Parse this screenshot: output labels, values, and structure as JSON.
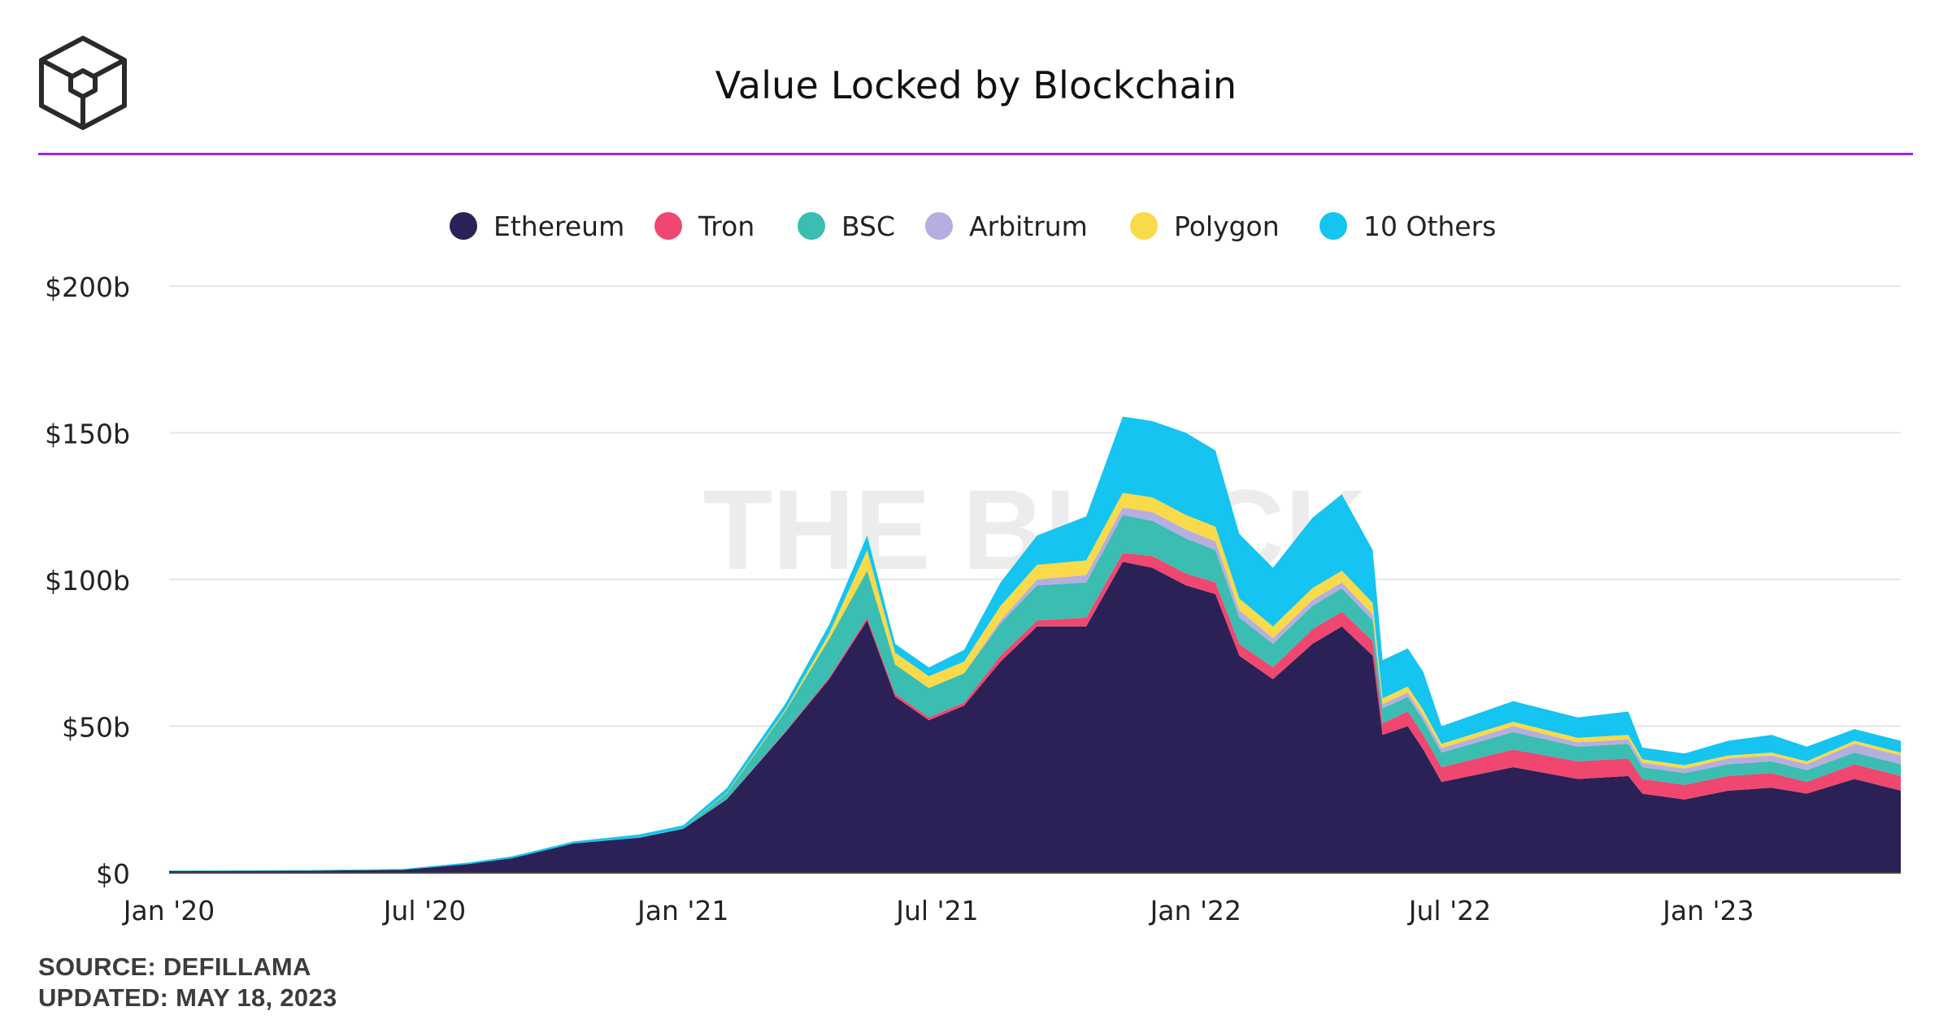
{
  "header": {
    "title": "Value Locked by Blockchain",
    "accent_color": "#a020f0"
  },
  "watermark": "THE BLOCK",
  "footer": {
    "source": "SOURCE: DEFILLAMA",
    "updated": "UPDATED: MAY 18, 2023"
  },
  "chart_data": {
    "type": "area",
    "stacked": true,
    "title": "Value Locked by Blockchain",
    "xlabel": "",
    "ylabel": "",
    "x_range": [
      "2020-01-01",
      "2023-05-18"
    ],
    "ylim": [
      0,
      200
    ],
    "y_unit": "billion USD",
    "y_ticks": [
      0,
      50,
      100,
      150,
      200
    ],
    "y_tick_labels": [
      "$0",
      "$50b",
      "$100b",
      "$150b",
      "$200b"
    ],
    "x_ticks": [
      "2020-01-01",
      "2020-07-01",
      "2021-01-01",
      "2021-07-01",
      "2022-01-01",
      "2022-07-01",
      "2023-01-01"
    ],
    "x_tick_labels": [
      "Jan '20",
      "Jul '20",
      "Jan '21",
      "Jul '21",
      "Jan '22",
      "Jul '22",
      "Jan '23"
    ],
    "grid": true,
    "legend_position": "top",
    "dates": [
      "2020-01-01",
      "2020-04-01",
      "2020-06-15",
      "2020-08-01",
      "2020-09-01",
      "2020-10-15",
      "2020-12-01",
      "2021-01-01",
      "2021-02-01",
      "2021-03-15",
      "2021-04-15",
      "2021-05-12",
      "2021-06-01",
      "2021-06-25",
      "2021-07-20",
      "2021-08-15",
      "2021-09-10",
      "2021-10-15",
      "2021-11-10",
      "2021-12-01",
      "2021-12-25",
      "2022-01-15",
      "2022-02-01",
      "2022-02-25",
      "2022-03-25",
      "2022-04-15",
      "2022-05-07",
      "2022-05-14",
      "2022-06-01",
      "2022-06-12",
      "2022-06-25",
      "2022-08-15",
      "2022-09-30",
      "2022-11-05",
      "2022-11-15",
      "2022-12-15",
      "2023-01-15",
      "2023-02-15",
      "2023-03-12",
      "2023-04-15",
      "2023-05-18"
    ],
    "series": [
      {
        "name": "Ethereum",
        "color": "#2b2157",
        "values": [
          0.6,
          0.7,
          1.0,
          3,
          5,
          10,
          12,
          15,
          25,
          48,
          66,
          86,
          60,
          52,
          57,
          72,
          84,
          84,
          106,
          104,
          98,
          95,
          74,
          66,
          78,
          84,
          74,
          47,
          50,
          42,
          31,
          36,
          32,
          33,
          27,
          25,
          28,
          29,
          27,
          32,
          28
        ]
      },
      {
        "name": "Tron",
        "color": "#ef476f",
        "values": [
          0,
          0,
          0,
          0,
          0,
          0,
          0,
          0,
          0.1,
          0.3,
          0.6,
          1,
          1,
          1,
          1,
          2,
          2,
          3,
          3,
          4,
          4,
          4,
          4,
          4,
          5,
          5,
          5,
          4,
          5,
          5,
          5,
          6,
          6,
          6,
          5,
          5,
          5,
          5,
          4,
          5,
          5
        ]
      },
      {
        "name": "BSC",
        "color": "#3bbdb1",
        "values": [
          0,
          0,
          0,
          0,
          0,
          0,
          0.1,
          0.2,
          2,
          7,
          13,
          16,
          10,
          10,
          10,
          11,
          12,
          12,
          13,
          12,
          12,
          11,
          9,
          8,
          8,
          8,
          7,
          5,
          5,
          5,
          5,
          6,
          5,
          5,
          4,
          4,
          4,
          4,
          4,
          4,
          4
        ]
      },
      {
        "name": "Arbitrum",
        "color": "#b6aee0",
        "values": [
          0,
          0,
          0,
          0,
          0,
          0,
          0,
          0,
          0,
          0,
          0,
          0,
          0,
          0,
          0,
          1,
          2,
          2.5,
          2.5,
          3,
          3,
          3,
          2.5,
          2,
          2,
          2,
          2,
          1.5,
          1.5,
          1.5,
          1.5,
          2,
          1.5,
          1.5,
          1.5,
          1.5,
          2,
          2,
          2,
          3,
          3
        ]
      },
      {
        "name": "Polygon",
        "color": "#f8da4a",
        "values": [
          0,
          0,
          0,
          0,
          0,
          0,
          0,
          0,
          0.2,
          0.5,
          2,
          7,
          4,
          4,
          4,
          5,
          5,
          5,
          5,
          5,
          5,
          5,
          4,
          4,
          4,
          4,
          4,
          2,
          2,
          2,
          1.5,
          1.5,
          1.5,
          1.5,
          1.2,
          1.2,
          1,
          1,
          1,
          1,
          1
        ]
      },
      {
        "name": "10 Others",
        "color": "#15c4f0",
        "values": [
          0.2,
          0.2,
          0.3,
          0.5,
          0.6,
          0.7,
          1,
          1,
          1.5,
          2,
          3,
          5,
          3,
          3,
          4,
          8,
          10,
          15,
          26,
          26,
          28,
          26,
          22,
          20,
          24,
          26,
          18,
          13,
          13,
          13,
          6,
          7,
          7,
          8,
          4,
          4,
          5,
          6,
          5,
          4,
          4
        ]
      }
    ]
  }
}
